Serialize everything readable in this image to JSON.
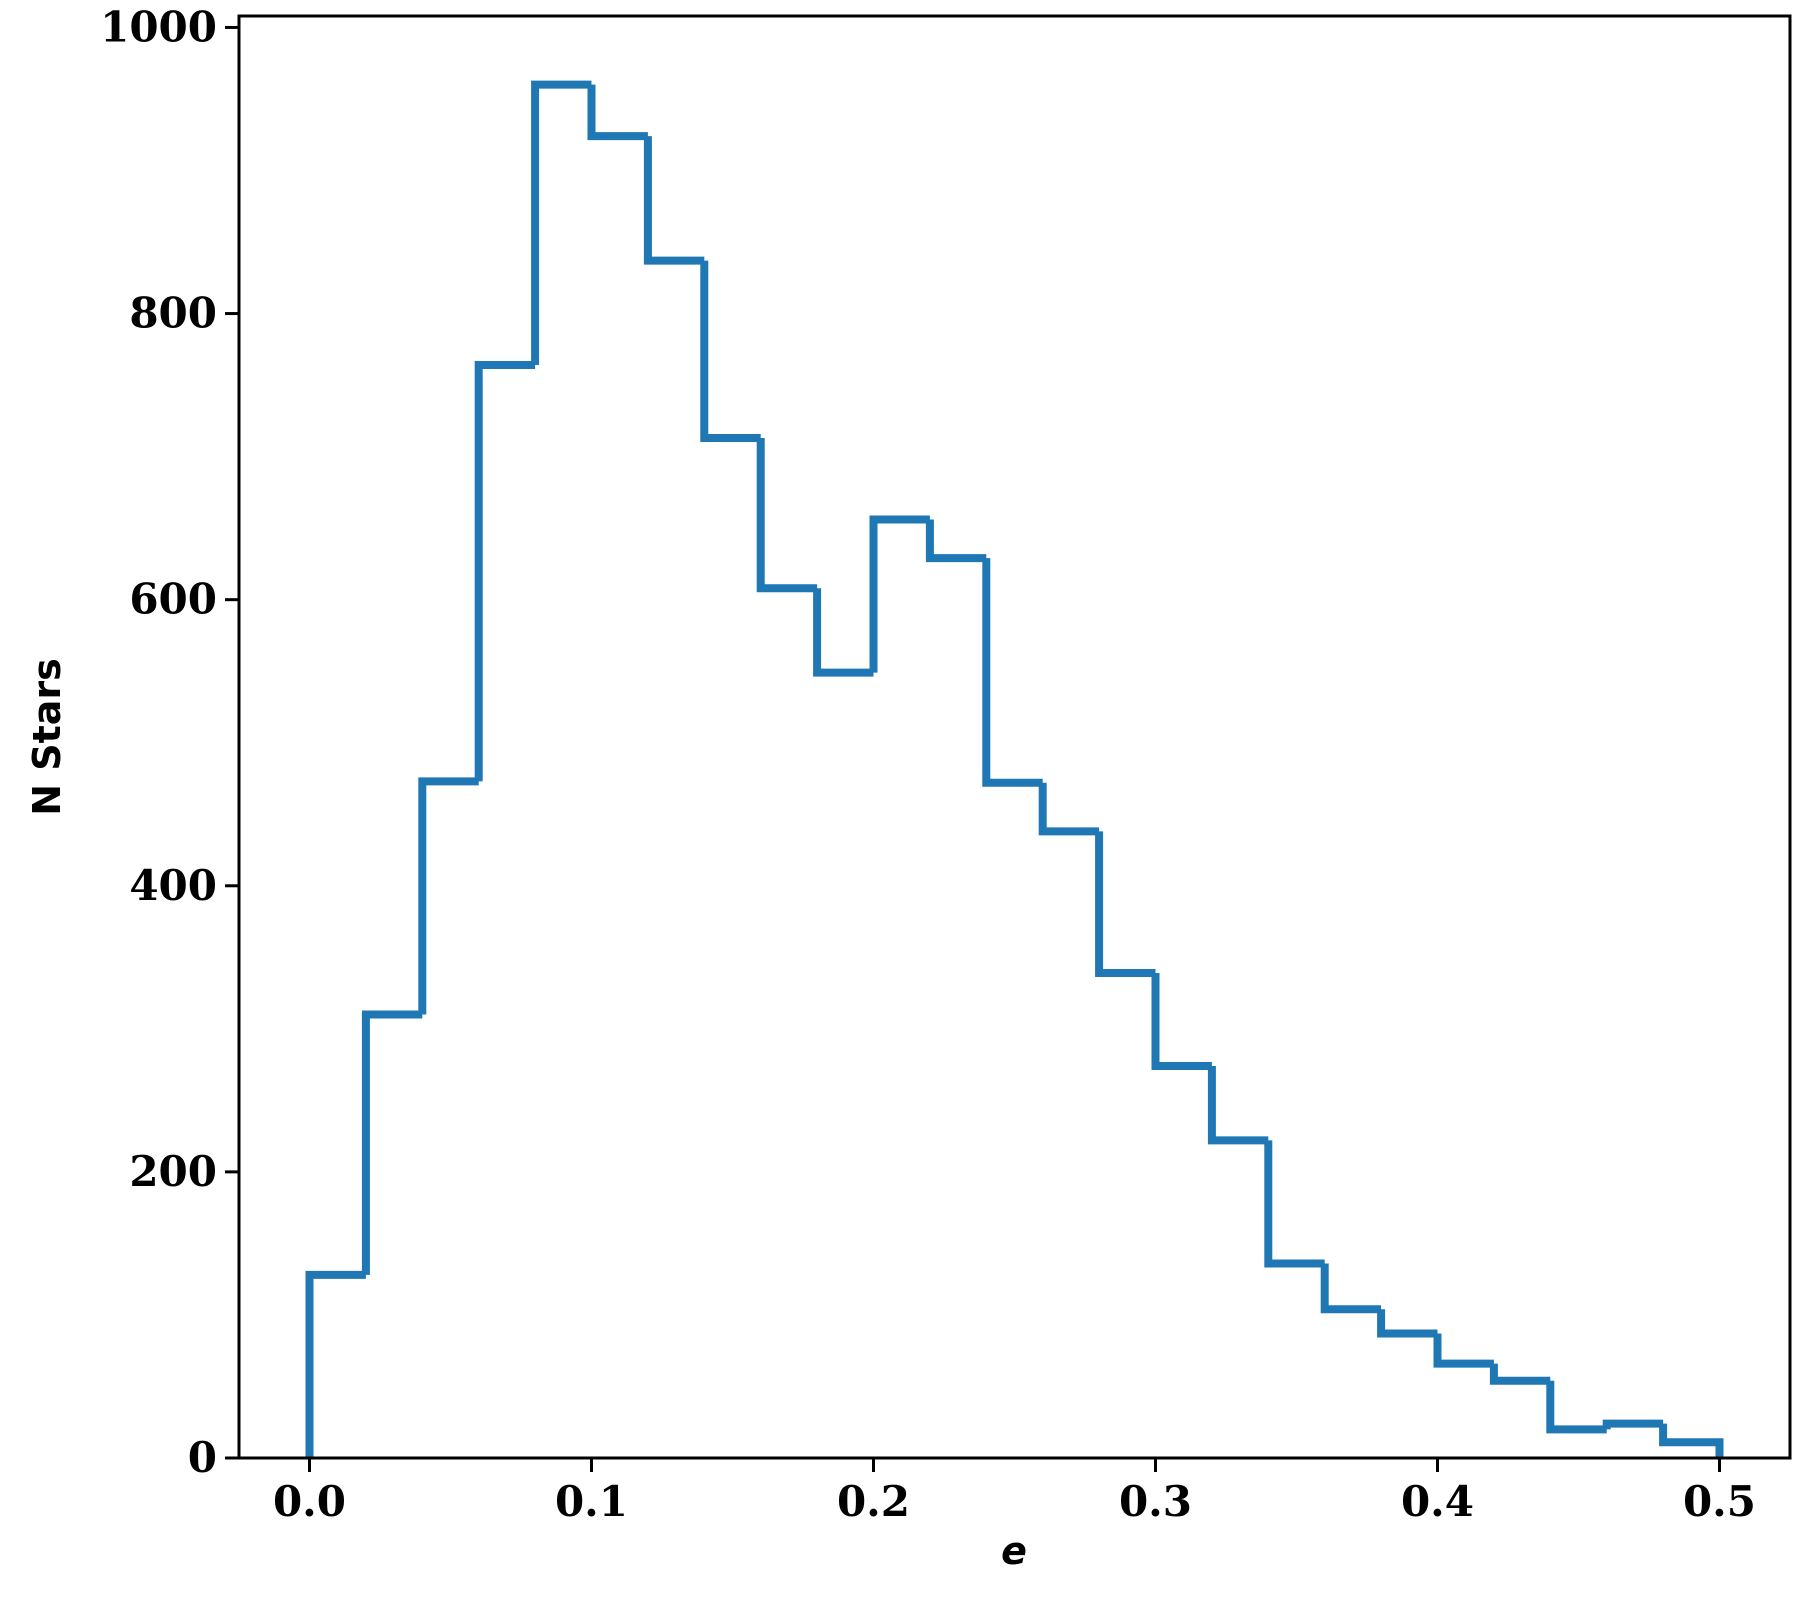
{
  "chart_data": {
    "type": "histogram",
    "xlabel": "e",
    "ylabel": "N Stars",
    "bins": [
      0,
      0.02,
      0.04,
      0.06,
      0.08,
      0.1,
      0.12,
      0.14,
      0.16,
      0.18,
      0.2,
      0.22,
      0.24,
      0.26,
      0.28,
      0.3,
      0.32,
      0.34,
      0.36,
      0.38,
      0.4,
      0.42,
      0.44,
      0.46,
      0.48,
      0.5
    ],
    "values": [
      128,
      310,
      473,
      764,
      960,
      924,
      837,
      713,
      608,
      549,
      656,
      629,
      472,
      438,
      339,
      274,
      222,
      136,
      104,
      87,
      66,
      54,
      20,
      24,
      11
    ],
    "color": "#1f77b4",
    "histtype": "step",
    "xlim": [
      -0.025,
      0.525
    ],
    "xticks": [
      {
        "value": 0,
        "label": "0.0"
      },
      0.1,
      0.2,
      0.3,
      0.4,
      0.5
    ],
    "ylim": [
      0,
      1008
    ],
    "yticks": [
      0,
      200,
      400,
      600,
      800,
      1000
    ]
  }
}
